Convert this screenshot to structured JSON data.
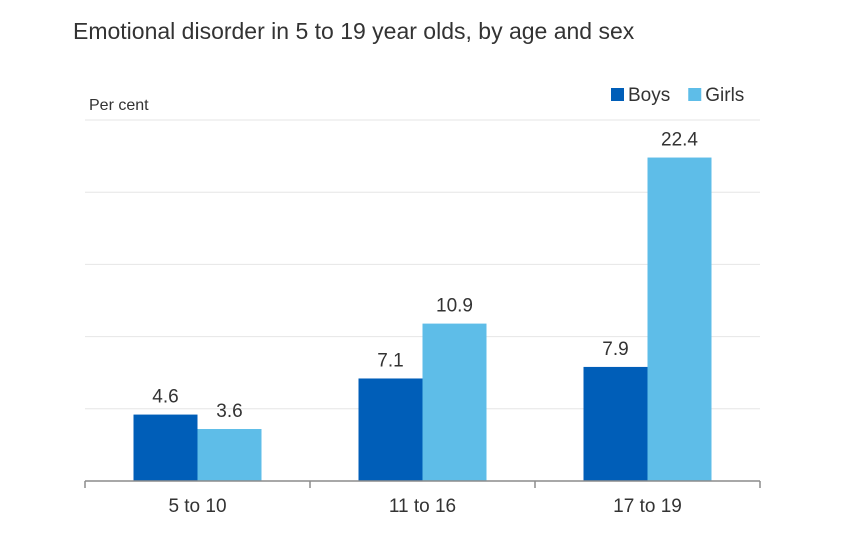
{
  "chart_data": {
    "type": "bar",
    "title": "Emotional disorder in 5 to 19 year olds, by age and sex",
    "ylabel": "Per cent",
    "xlabel": "",
    "categories": [
      "5 to 10",
      "11 to 16",
      "17 to 19"
    ],
    "series": [
      {
        "name": "Boys",
        "color": "#005EB8",
        "values": [
          4.6,
          7.1,
          7.9
        ]
      },
      {
        "name": "Girls",
        "color": "#5EBDE8",
        "values": [
          3.6,
          10.9,
          22.4
        ]
      }
    ],
    "ylim": [
      0,
      25
    ],
    "grid": true,
    "legend": "top-right"
  }
}
